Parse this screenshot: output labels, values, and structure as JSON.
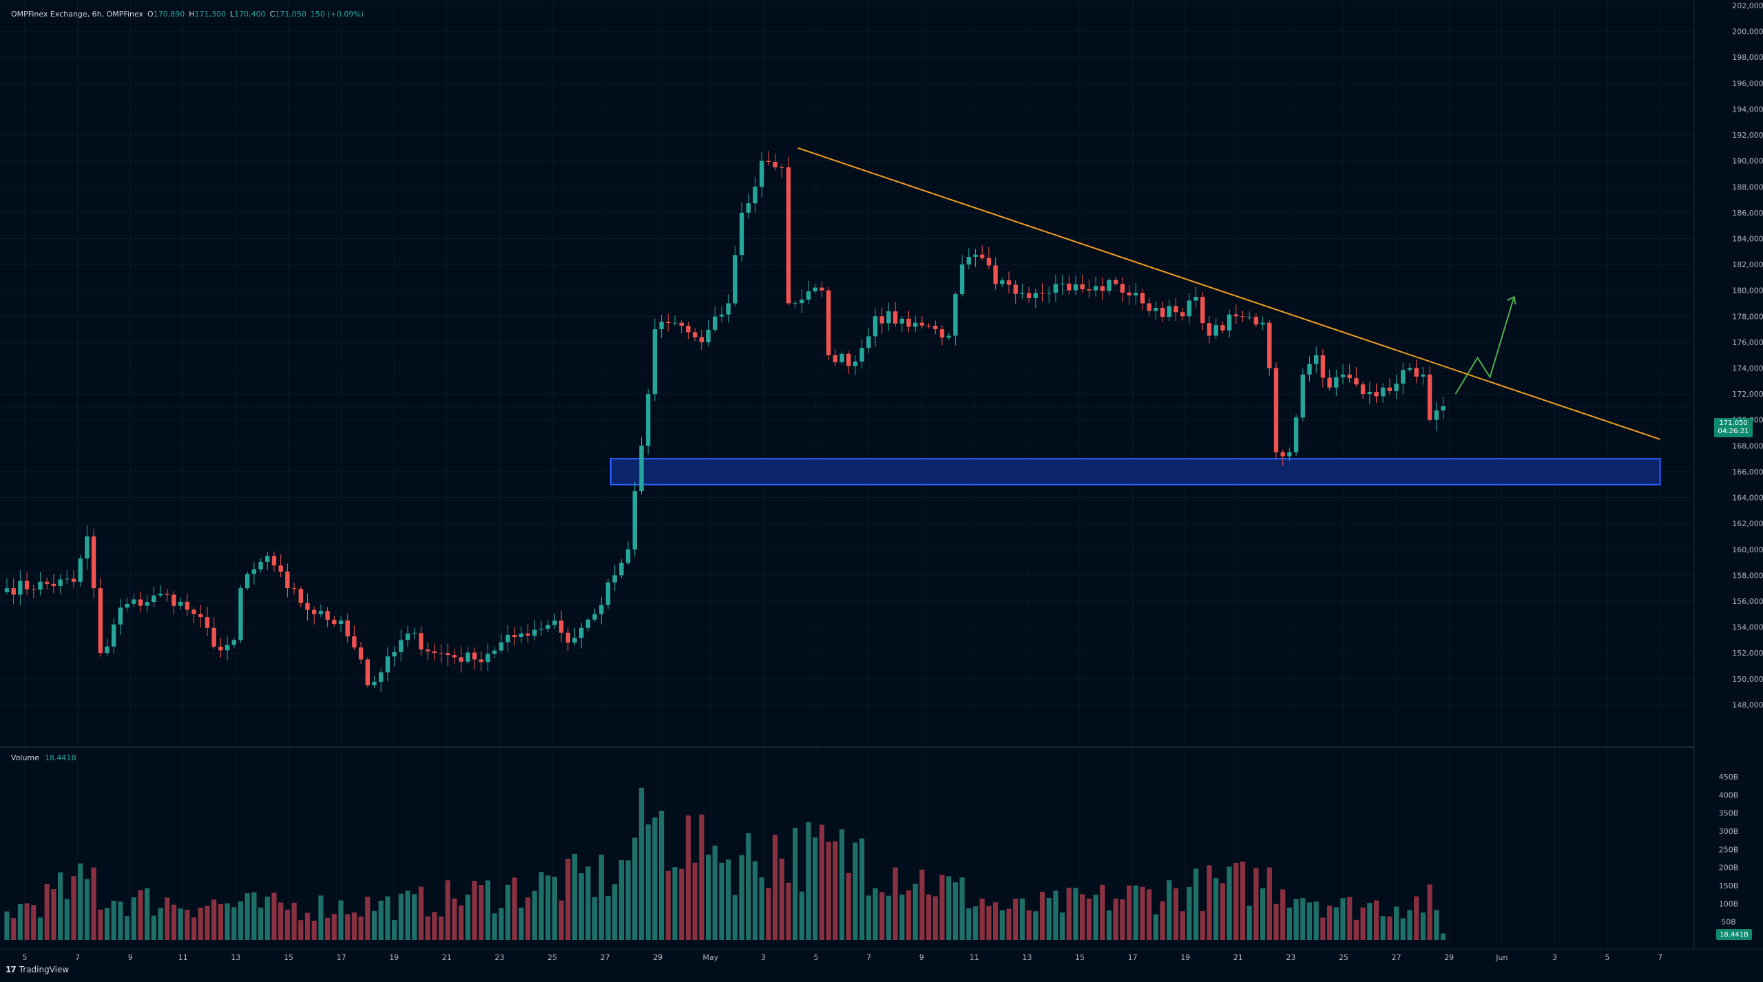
{
  "header": {
    "symbol": "OMPFinex Exchange, 6h, OMPFinex",
    "o_label": "O",
    "o_value": "170,890",
    "h_label": "H",
    "h_value": "171,300",
    "l_label": "L",
    "l_value": "170,400",
    "c_label": "C",
    "c_value": "171,050",
    "change": "150 (+0.09%)"
  },
  "volume_legend": {
    "label": "Volume",
    "value": "18.441B"
  },
  "price_badge": {
    "price": "171,050",
    "countdown": "04:26:21"
  },
  "volume_badge": "18.441B",
  "branding": {
    "logo": "17",
    "name": "TradingView"
  },
  "colors": {
    "up": "#26a69a",
    "down": "#ef5350",
    "vol_up": "#1f6f69",
    "vol_down": "#8a3141",
    "trendline": "#f0a020",
    "zone_fill": "#0d2a7a",
    "zone_border": "#2962ff",
    "arrow": "#4caf50",
    "background": "#020d1b"
  },
  "chart_data": {
    "type": "candlestick",
    "interval": "6h",
    "ylim": [
      146000,
      202000
    ],
    "y_ticks": [
      "148,000",
      "150,000",
      "152,000",
      "154,000",
      "156,000",
      "158,000",
      "160,000",
      "162,000",
      "164,000",
      "166,000",
      "168,000",
      "170,000",
      "172,000",
      "174,000",
      "176,000",
      "178,000",
      "180,000",
      "182,000",
      "184,000",
      "186,000",
      "188,000",
      "190,000",
      "192,000",
      "194,000",
      "196,000",
      "198,000",
      "200,000",
      "202,000"
    ],
    "volume_ticks": [
      "50B",
      "100B",
      "150B",
      "200B",
      "250B",
      "300B",
      "350B",
      "400B",
      "450B"
    ],
    "x_ticks": [
      "5",
      "7",
      "9",
      "11",
      "13",
      "15",
      "17",
      "19",
      "21",
      "23",
      "25",
      "27",
      "29",
      "May",
      "3",
      "5",
      "7",
      "9",
      "11",
      "13",
      "15",
      "17",
      "19",
      "21",
      "23",
      "25",
      "27",
      "29",
      "Jun",
      "3",
      "5",
      "7"
    ],
    "anchors": [
      {
        "i": 0,
        "p": 157000
      },
      {
        "i": 10,
        "p": 157500
      },
      {
        "i": 12,
        "p": 161000
      },
      {
        "i": 13,
        "p": 157000
      },
      {
        "i": 14,
        "p": 152000
      },
      {
        "i": 15,
        "p": 152500
      },
      {
        "i": 17,
        "p": 155500
      },
      {
        "i": 24,
        "p": 156500
      },
      {
        "i": 28,
        "p": 155000
      },
      {
        "i": 32,
        "p": 152200
      },
      {
        "i": 34,
        "p": 153000
      },
      {
        "i": 35,
        "p": 157000
      },
      {
        "i": 39,
        "p": 159500
      },
      {
        "i": 42,
        "p": 157000
      },
      {
        "i": 46,
        "p": 155000
      },
      {
        "i": 50,
        "p": 154500
      },
      {
        "i": 53,
        "p": 151500
      },
      {
        "i": 54,
        "p": 149500
      },
      {
        "i": 56,
        "p": 150500
      },
      {
        "i": 60,
        "p": 153500
      },
      {
        "i": 64,
        "p": 152000
      },
      {
        "i": 70,
        "p": 151500
      },
      {
        "i": 77,
        "p": 153500
      },
      {
        "i": 82,
        "p": 154500
      },
      {
        "i": 84,
        "p": 152800
      },
      {
        "i": 88,
        "p": 155000
      },
      {
        "i": 91,
        "p": 158000
      },
      {
        "i": 93,
        "p": 160000
      },
      {
        "i": 94,
        "p": 164500
      },
      {
        "i": 95,
        "p": 168000
      },
      {
        "i": 96,
        "p": 172000
      },
      {
        "i": 97,
        "p": 177000
      },
      {
        "i": 100,
        "p": 177500
      },
      {
        "i": 104,
        "p": 176000
      },
      {
        "i": 108,
        "p": 179000
      },
      {
        "i": 110,
        "p": 186000
      },
      {
        "i": 112,
        "p": 188000
      },
      {
        "i": 113,
        "p": 190000
      },
      {
        "i": 116,
        "p": 189500
      },
      {
        "i": 117,
        "p": 179000
      },
      {
        "i": 122,
        "p": 180000
      },
      {
        "i": 123,
        "p": 175000
      },
      {
        "i": 127,
        "p": 174500
      },
      {
        "i": 130,
        "p": 178000
      },
      {
        "i": 136,
        "p": 177500
      },
      {
        "i": 139,
        "p": 177000
      },
      {
        "i": 141,
        "p": 176500
      },
      {
        "i": 143,
        "p": 182000
      },
      {
        "i": 146,
        "p": 182500
      },
      {
        "i": 148,
        "p": 180500
      },
      {
        "i": 152,
        "p": 179800
      },
      {
        "i": 157,
        "p": 180500
      },
      {
        "i": 162,
        "p": 180000
      },
      {
        "i": 166,
        "p": 180500
      },
      {
        "i": 170,
        "p": 179000
      },
      {
        "i": 176,
        "p": 178000
      },
      {
        "i": 178,
        "p": 179500
      },
      {
        "i": 180,
        "p": 176500
      },
      {
        "i": 184,
        "p": 178000
      },
      {
        "i": 188,
        "p": 177500
      },
      {
        "i": 189,
        "p": 174000
      },
      {
        "i": 190,
        "p": 167500
      },
      {
        "i": 192,
        "p": 167500
      },
      {
        "i": 194,
        "p": 173500
      },
      {
        "i": 196,
        "p": 175000
      },
      {
        "i": 198,
        "p": 172500
      },
      {
        "i": 200,
        "p": 173500
      },
      {
        "i": 203,
        "p": 172000
      },
      {
        "i": 206,
        "p": 172500
      },
      {
        "i": 208,
        "p": 172800
      },
      {
        "i": 210,
        "p": 174000
      },
      {
        "i": 212,
        "p": 173500
      },
      {
        "i": 213,
        "p": 170000
      },
      {
        "i": 215,
        "p": 171050
      }
    ],
    "volume_anchors": [
      {
        "i": 0,
        "v": 90
      },
      {
        "i": 13,
        "v": 200
      },
      {
        "i": 14,
        "v": 140
      },
      {
        "i": 40,
        "v": 110
      },
      {
        "i": 60,
        "v": 120
      },
      {
        "i": 92,
        "v": 220
      },
      {
        "i": 95,
        "v": 420
      },
      {
        "i": 106,
        "v": 260
      },
      {
        "i": 115,
        "v": 290
      },
      {
        "i": 128,
        "v": 280
      },
      {
        "i": 150,
        "v": 100
      },
      {
        "i": 189,
        "v": 200
      },
      {
        "i": 200,
        "v": 110
      },
      {
        "i": 213,
        "v": 130
      },
      {
        "i": 215,
        "v": 18
      }
    ],
    "trendline": {
      "from": {
        "date": "May 3",
        "price": 191000
      },
      "to": {
        "date": "Jun 7",
        "price": 168500
      }
    },
    "support_zone": {
      "from": "Apr 28",
      "to": "Jun 7",
      "low": 165000,
      "high": 167000
    }
  }
}
